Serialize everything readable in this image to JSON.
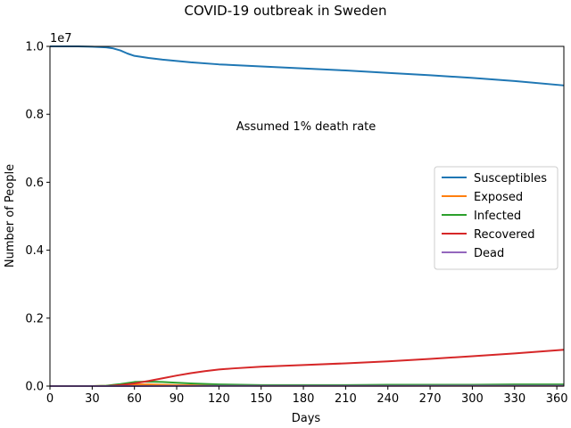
{
  "chart_data": {
    "type": "line",
    "title": "COVID-19 outbreak in Sweden",
    "xlabel": "Days",
    "ylabel": "Number of People",
    "y_offset_label": "1e7",
    "annotation": "Assumed 1% death rate",
    "xlim": [
      0,
      365
    ],
    "ylim": [
      0,
      1.0
    ],
    "x_ticks": [
      0,
      30,
      60,
      90,
      120,
      150,
      180,
      210,
      240,
      270,
      300,
      330,
      360
    ],
    "y_ticks": [
      0.0,
      0.2,
      0.4,
      0.6,
      0.8,
      1.0
    ],
    "y_tick_labels": [
      "0.0",
      "0.2",
      "0.4",
      "0.6",
      "0.8",
      "1.0"
    ],
    "grid": false,
    "legend_position": "center-right",
    "series": [
      {
        "name": "Susceptibles",
        "color": "#1f77b4",
        "x": [
          0,
          20,
          30,
          40,
          45,
          50,
          55,
          60,
          70,
          80,
          90,
          100,
          120,
          150,
          180,
          210,
          240,
          270,
          300,
          330,
          365
        ],
        "y": [
          1.0,
          1.0,
          0.999,
          0.997,
          0.994,
          0.988,
          0.979,
          0.972,
          0.966,
          0.961,
          0.957,
          0.953,
          0.947,
          0.941,
          0.935,
          0.929,
          0.922,
          0.915,
          0.907,
          0.898,
          0.885
        ]
      },
      {
        "name": "Exposed",
        "color": "#ff7f0e",
        "x": [
          0,
          30,
          40,
          50,
          60,
          70,
          80,
          90,
          120,
          150,
          180,
          240,
          300,
          365
        ],
        "y": [
          0,
          0,
          0.001,
          0.003,
          0.005,
          0.005,
          0.004,
          0.003,
          0.002,
          0.001,
          0.001,
          0.001,
          0.001,
          0.001
        ]
      },
      {
        "name": "Infected",
        "color": "#2ca02c",
        "x": [
          0,
          30,
          40,
          50,
          60,
          70,
          80,
          90,
          100,
          120,
          150,
          180,
          210,
          240,
          270,
          300,
          330,
          365
        ],
        "y": [
          0,
          0,
          0.001,
          0.006,
          0.012,
          0.013,
          0.012,
          0.01,
          0.008,
          0.005,
          0.003,
          0.003,
          0.003,
          0.004,
          0.004,
          0.004,
          0.005,
          0.005
        ]
      },
      {
        "name": "Recovered",
        "color": "#d62728",
        "x": [
          0,
          30,
          40,
          50,
          60,
          70,
          80,
          90,
          100,
          110,
          120,
          130,
          150,
          180,
          210,
          240,
          270,
          300,
          330,
          365
        ],
        "y": [
          0,
          0,
          0.0,
          0.003,
          0.008,
          0.015,
          0.023,
          0.031,
          0.038,
          0.044,
          0.049,
          0.052,
          0.057,
          0.062,
          0.067,
          0.073,
          0.08,
          0.088,
          0.096,
          0.107
        ]
      },
      {
        "name": "Dead",
        "color": "#9467bd",
        "x": [
          0,
          30,
          60,
          90,
          120,
          180,
          240,
          300,
          365
        ],
        "y": [
          0,
          0,
          0.0,
          0.0003,
          0.0005,
          0.0006,
          0.0007,
          0.0009,
          0.001
        ]
      }
    ]
  }
}
